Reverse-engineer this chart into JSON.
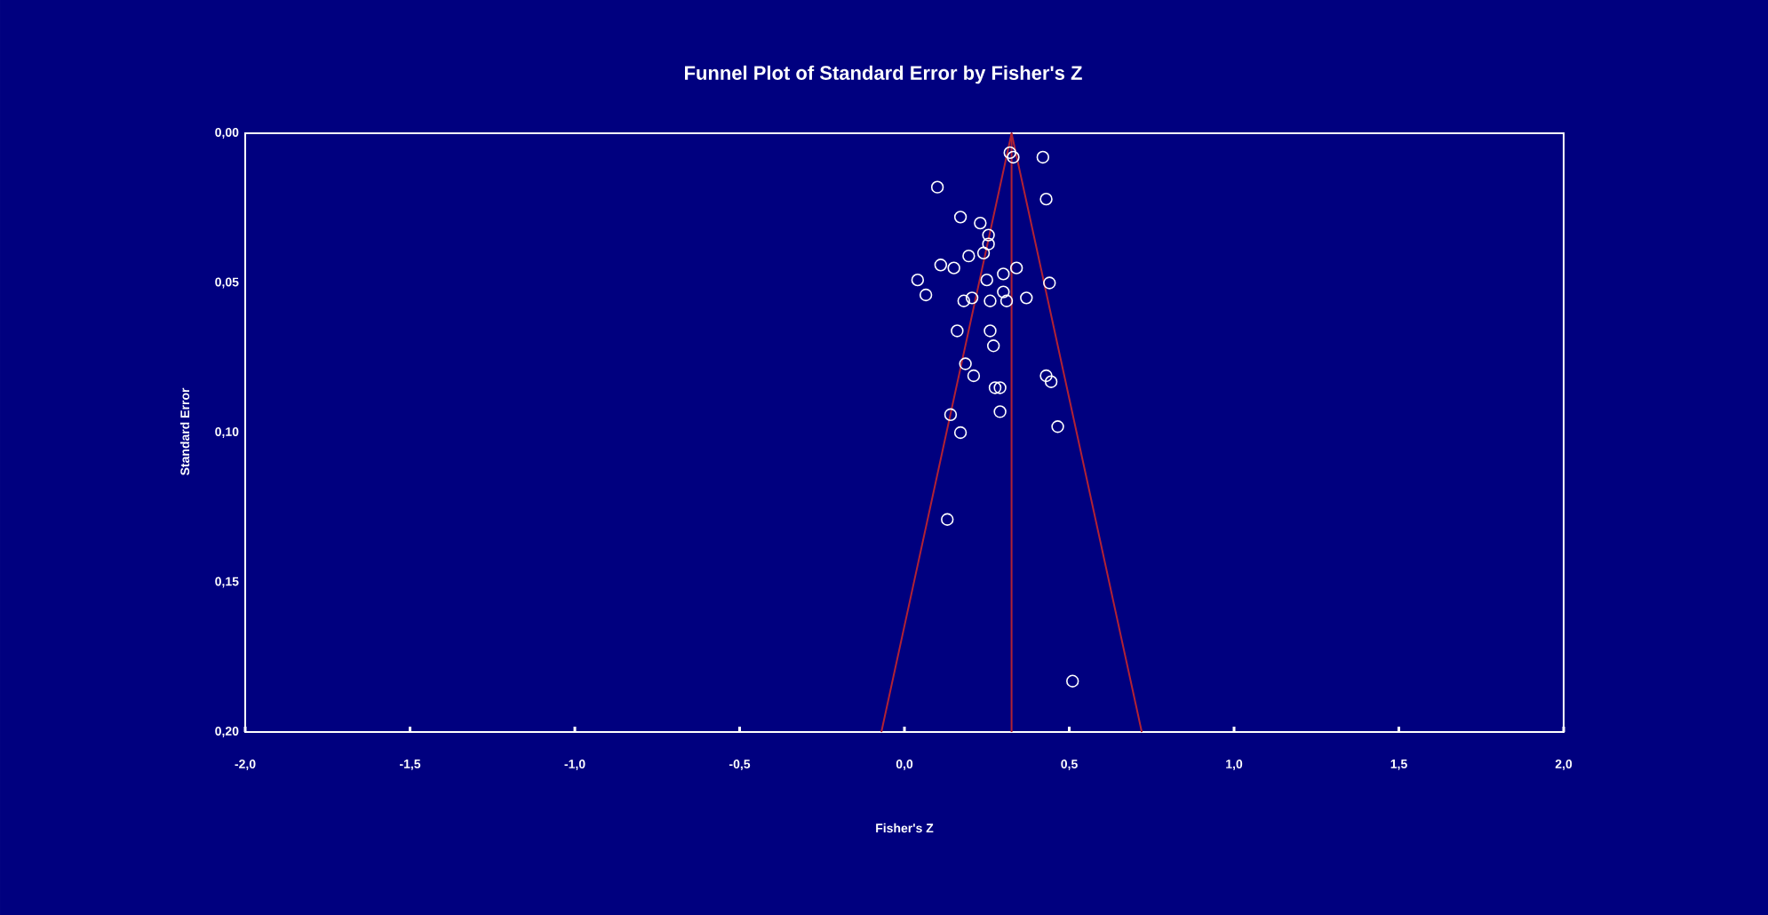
{
  "chart_data": {
    "type": "scatter",
    "title": "Funnel Plot of Standard Error by Fisher's Z",
    "xlabel": "Fisher's Z",
    "ylabel": "Standard Error",
    "marker": "circle",
    "grid": false,
    "xlim": [
      -2,
      2
    ],
    "ylim": [
      0.2,
      0
    ],
    "xticks": [
      {
        "value": -2,
        "label": "-2,0"
      },
      {
        "value": -1.5,
        "label": "-1,5"
      },
      {
        "value": -1,
        "label": "-1,0"
      },
      {
        "value": -0.5,
        "label": "-0,5"
      },
      {
        "value": 0,
        "label": "0,0"
      },
      {
        "value": 0.5,
        "label": "0,5"
      },
      {
        "value": 1,
        "label": "1,0"
      },
      {
        "value": 1.5,
        "label": "1,5"
      },
      {
        "value": 2,
        "label": "2,0"
      }
    ],
    "yticks": [
      {
        "value": 0,
        "label": "0,00"
      },
      {
        "value": 0.05,
        "label": "0,05"
      },
      {
        "value": 0.1,
        "label": "0,10"
      },
      {
        "value": 0.15,
        "label": "0,15"
      },
      {
        "value": 0.2,
        "label": "0,20"
      }
    ],
    "ref_lines": [
      {
        "axis": "x",
        "value": 0.325,
        "color": "#b22234"
      }
    ],
    "series": [
      {
        "color": "#ffffff",
        "x": [
          0.32,
          0.33,
          0.42,
          0.1,
          0.43,
          0.17,
          0.23,
          0.255,
          0.255,
          0.24,
          0.195,
          0.11,
          0.15,
          0.34,
          0.3,
          0.25,
          0.04,
          0.44,
          0.065,
          0.18,
          0.205,
          0.26,
          0.3,
          0.31,
          0.37,
          0.16,
          0.26,
          0.27,
          0.185,
          0.21,
          0.43,
          0.445,
          0.275,
          0.29,
          0.29,
          0.14,
          0.17,
          0.465,
          0.13,
          0.51
        ],
        "values": [
          0.0065,
          0.008,
          0.008,
          0.018,
          0.022,
          0.028,
          0.03,
          0.034,
          0.037,
          0.04,
          0.041,
          0.044,
          0.045,
          0.045,
          0.047,
          0.049,
          0.049,
          0.05,
          0.054,
          0.056,
          0.055,
          0.056,
          0.053,
          0.056,
          0.055,
          0.066,
          0.066,
          0.071,
          0.077,
          0.081,
          0.081,
          0.083,
          0.085,
          0.085,
          0.093,
          0.094,
          0.1,
          0.098,
          0.129,
          0.183
        ]
      },
      {
        "type": "line",
        "color": "#b22234",
        "marker": "none",
        "x": [
          -0.07,
          0.325,
          0.72
        ],
        "values": [
          0.2,
          0,
          0.2
        ]
      }
    ]
  }
}
